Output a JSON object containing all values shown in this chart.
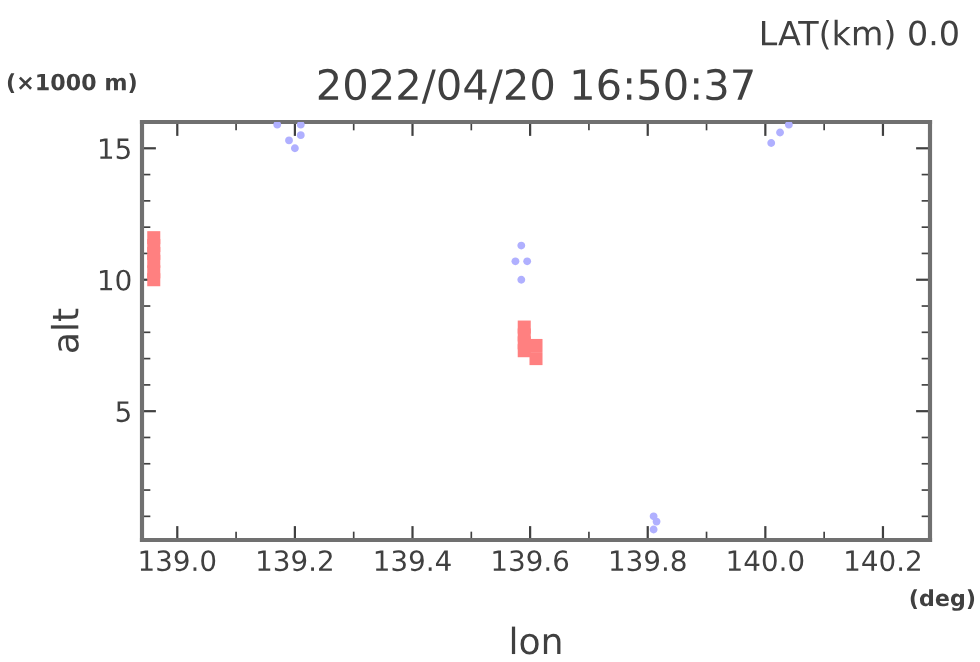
{
  "chart_data": {
    "type": "scatter",
    "title": "2022/04/20 16:50:37",
    "xlabel": "lon",
    "ylabel": "alt",
    "annotations": [
      "LAT(km) 0.0",
      "(×1000 m)",
      "(deg)"
    ],
    "xlim": [
      138.94,
      140.28
    ],
    "xticks": [
      {
        "value": 139.0,
        "label": "139.0"
      },
      139.2,
      139.4,
      139.6,
      139.8,
      {
        "value": 140.0,
        "label": "140.0"
      },
      140.2
    ],
    "ylim": [
      0.1,
      16
    ],
    "yticks": [
      5,
      10,
      15
    ],
    "grid": false,
    "legend": false,
    "series": [
      {
        "marker": "square",
        "color": "#ff8080",
        "x": [
          138.96,
          138.96,
          138.96,
          138.96,
          138.96,
          138.96
        ],
        "values": [
          10.0,
          10.3,
          10.7,
          11.0,
          11.3,
          11.6
        ]
      },
      {
        "marker": "square",
        "color": "#ff8080",
        "x": [
          139.59,
          139.59,
          139.59,
          139.59
        ],
        "values": [
          7.3,
          7.6,
          7.9,
          8.2
        ]
      },
      {
        "marker": "square",
        "color": "#ff8080",
        "x": [
          139.61,
          139.61
        ],
        "values": [
          7.0,
          7.5
        ]
      },
      {
        "marker": "circle",
        "color": "#b0b0ff",
        "x": [
          139.17,
          139.19,
          139.2,
          139.21,
          139.21
        ],
        "values": [
          15.9,
          15.3,
          15.0,
          15.5,
          15.9
        ]
      },
      {
        "marker": "circle",
        "color": "#b0b0ff",
        "x": [
          139.575,
          139.585,
          139.595,
          139.585
        ],
        "values": [
          10.7,
          11.3,
          10.7,
          10.0
        ]
      },
      {
        "marker": "circle",
        "color": "#b0b0ff",
        "x": [
          139.81,
          139.815,
          139.81
        ],
        "values": [
          1.0,
          0.8,
          0.5
        ]
      },
      {
        "marker": "circle",
        "color": "#b0b0ff",
        "x": [
          140.01,
          140.025,
          140.04
        ],
        "values": [
          15.2,
          15.6,
          15.9
        ]
      }
    ]
  }
}
